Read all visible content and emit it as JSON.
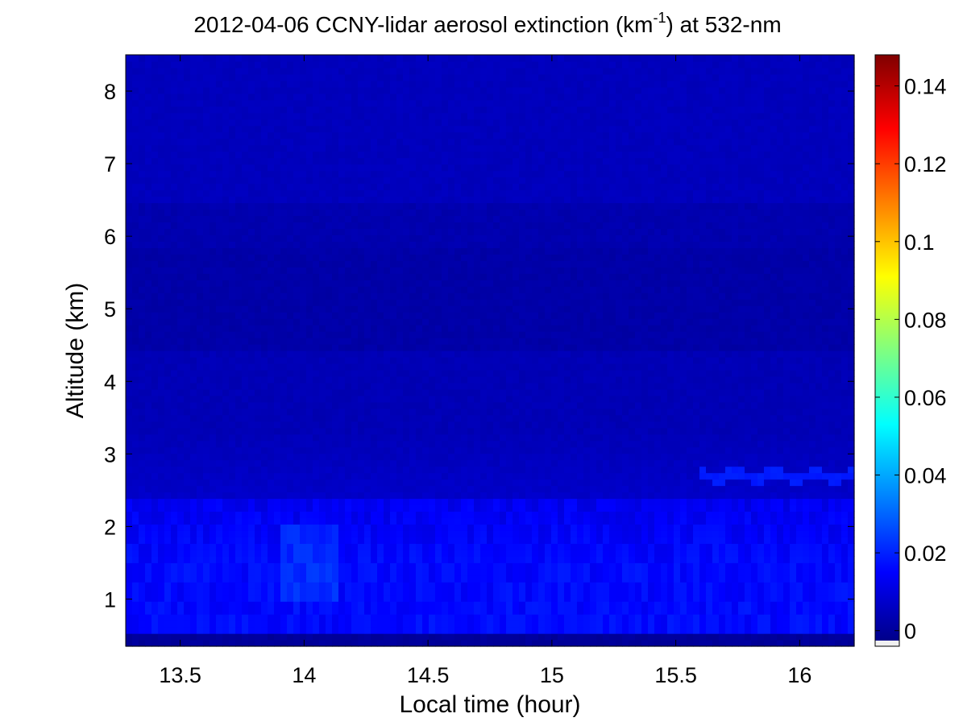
{
  "chart_data": {
    "type": "heatmap",
    "title_main": "2012-04-06 CCNY-lidar aerosol extinction (km",
    "title_sup": "-1",
    "title_tail": ") at 532-nm",
    "xlabel": "Local time (hour)",
    "ylabel": "Altitude (km)",
    "xlim": [
      13.28,
      16.22
    ],
    "ylim": [
      0.35,
      8.5
    ],
    "xticks": [
      13.5,
      14,
      14.5,
      15,
      15.5,
      16
    ],
    "xtick_labels": [
      "13.5",
      "14",
      "14.5",
      "15",
      "15.5",
      "16"
    ],
    "yticks": [
      1,
      2,
      3,
      4,
      5,
      6,
      7,
      8
    ],
    "ytick_labels": [
      "1",
      "2",
      "3",
      "4",
      "5",
      "6",
      "7",
      "8"
    ],
    "colorbar": {
      "colormap": "jet",
      "clim": [
        -0.004,
        0.148
      ],
      "ticks": [
        0,
        0.02,
        0.04,
        0.06,
        0.08,
        0.1,
        0.12,
        0.14
      ],
      "tick_labels": [
        "0",
        "0.02",
        "0.04",
        "0.06",
        "0.08",
        "0.1",
        "0.12",
        "0.14"
      ]
    },
    "field": {
      "description_of_structure": [
        {
          "altitude_range_km": [
            0.35,
            0.5
          ],
          "extinction": 0.0
        },
        {
          "altitude_range_km": [
            0.5,
            1.5
          ],
          "extinction": 0.016
        },
        {
          "altitude_range_km": [
            1.5,
            2.4
          ],
          "extinction": 0.014
        },
        {
          "altitude_range_km": [
            2.4,
            3.3
          ],
          "extinction": 0.006
        },
        {
          "altitude_range_km": [
            3.3,
            6.5
          ],
          "extinction": 0.004
        },
        {
          "altitude_range_km": [
            6.5,
            8.5
          ],
          "extinction": 0.006
        }
      ],
      "features": [
        {
          "name": "elevated layer",
          "time_range_h": [
            15.6,
            16.22
          ],
          "altitude_km": 2.7,
          "extinction": 0.018
        },
        {
          "name": "boundary layer plume",
          "time_range_h": [
            13.9,
            14.15
          ],
          "altitude_range_km": [
            1.0,
            2.0
          ],
          "extinction": 0.022
        },
        {
          "name": "dark band",
          "time_range_h": [
            13.28,
            16.22
          ],
          "altitude_range_km": [
            4.4,
            5.8
          ],
          "extinction": 0.002
        }
      ]
    }
  },
  "colors": {
    "background": "#ffffff",
    "axes": "#000000"
  }
}
